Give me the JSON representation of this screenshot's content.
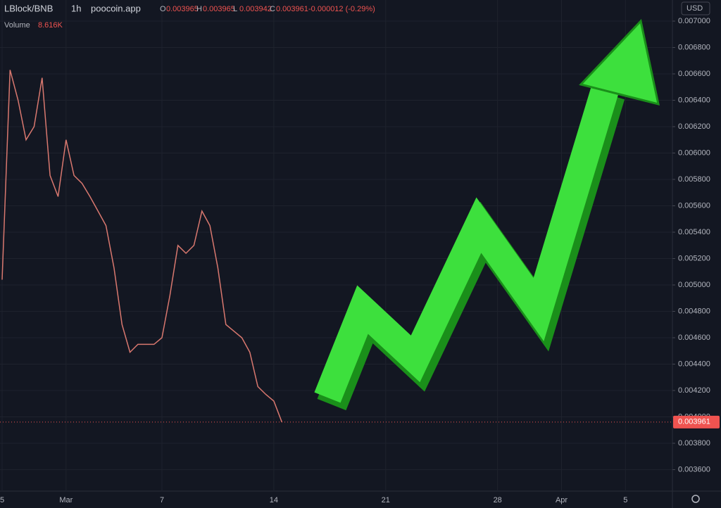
{
  "chart_data": {
    "type": "line",
    "symbol": "LBlock/BNB",
    "interval": "1h",
    "source": "poocoin.app",
    "ohlc": [
      {
        "key": "O",
        "value": "0.003965"
      },
      {
        "key": "H",
        "value": "0.003965"
      },
      {
        "key": "L",
        "value": "0.003942"
      },
      {
        "key": "C",
        "value": "0.003961"
      }
    ],
    "change": "-0.000012 (-0.29%)",
    "volume_label": "Volume",
    "volume_value": "8.616K",
    "currency": "USD",
    "categories": [
      "5",
      null,
      null,
      null,
      null,
      null,
      null,
      null,
      "Mar",
      null,
      null,
      null,
      null,
      null,
      null,
      null,
      null,
      null,
      null,
      null,
      "7",
      null,
      null,
      null,
      null,
      null,
      null,
      null,
      null,
      null,
      null,
      null,
      null,
      null,
      "14",
      null,
      null,
      null,
      null,
      null,
      null,
      null,
      null,
      null,
      null,
      null,
      null,
      null,
      "21",
      null,
      null,
      null,
      null,
      null,
      null,
      null,
      null,
      null,
      null,
      null,
      null,
      null,
      "28",
      null,
      null,
      null,
      null,
      null,
      null,
      null,
      "Apr",
      null,
      null,
      null,
      null,
      null,
      null,
      null,
      "5",
      null,
      null,
      null,
      null,
      null
    ],
    "series": [
      {
        "name": "LBlock/BNB",
        "color": "#d9786f",
        "values": [
          0.00504,
          0.00663,
          0.0064,
          0.0061,
          0.0062,
          0.00657,
          0.00583,
          0.00567,
          0.0061,
          0.00583,
          0.00577,
          0.00567,
          0.00556,
          0.00545,
          0.00513,
          0.0047,
          0.00449,
          0.00455,
          0.00455,
          0.00455,
          0.0046,
          0.00492,
          0.0053,
          0.00524,
          0.0053,
          0.00556,
          0.00545,
          0.00513,
          0.0047,
          0.00465,
          0.0046,
          0.00449,
          0.00423,
          0.00417,
          0.00412,
          0.003961,
          null,
          null,
          null,
          null,
          null,
          null,
          null,
          null,
          null,
          null,
          null,
          null,
          null,
          null,
          null,
          null,
          null,
          null,
          null,
          null,
          null,
          null,
          null,
          null,
          null,
          null,
          null,
          null,
          null,
          null,
          null,
          null,
          null,
          null,
          null,
          null,
          null,
          null,
          null,
          null,
          null,
          null,
          null,
          null,
          null,
          null,
          null,
          null
        ]
      }
    ],
    "last_price": 0.003961,
    "ylim": [
      0.00348,
      0.00716
    ],
    "yticks": [
      {
        "value": 0.0036,
        "label": "0.003600"
      },
      {
        "value": 0.0038,
        "label": "0.003800"
      },
      {
        "value": 0.004,
        "label": "0.004000"
      },
      {
        "value": 0.0042,
        "label": "0.004200"
      },
      {
        "value": 0.0044,
        "label": "0.004400"
      },
      {
        "value": 0.0046,
        "label": "0.004600"
      },
      {
        "value": 0.0048,
        "label": "0.004800"
      },
      {
        "value": 0.005,
        "label": "0.005000"
      },
      {
        "value": 0.0052,
        "label": "0.005200"
      },
      {
        "value": 0.0054,
        "label": "0.005400"
      },
      {
        "value": 0.0056,
        "label": "0.005600"
      },
      {
        "value": 0.0058,
        "label": "0.005800"
      },
      {
        "value": 0.006,
        "label": "0.006000"
      },
      {
        "value": 0.0062,
        "label": "0.006200"
      },
      {
        "value": 0.0064,
        "label": "0.006400"
      },
      {
        "value": 0.0066,
        "label": "0.006600"
      },
      {
        "value": 0.0068,
        "label": "0.006800"
      },
      {
        "value": 0.007,
        "label": "0.007000"
      }
    ],
    "grid": true
  }
}
